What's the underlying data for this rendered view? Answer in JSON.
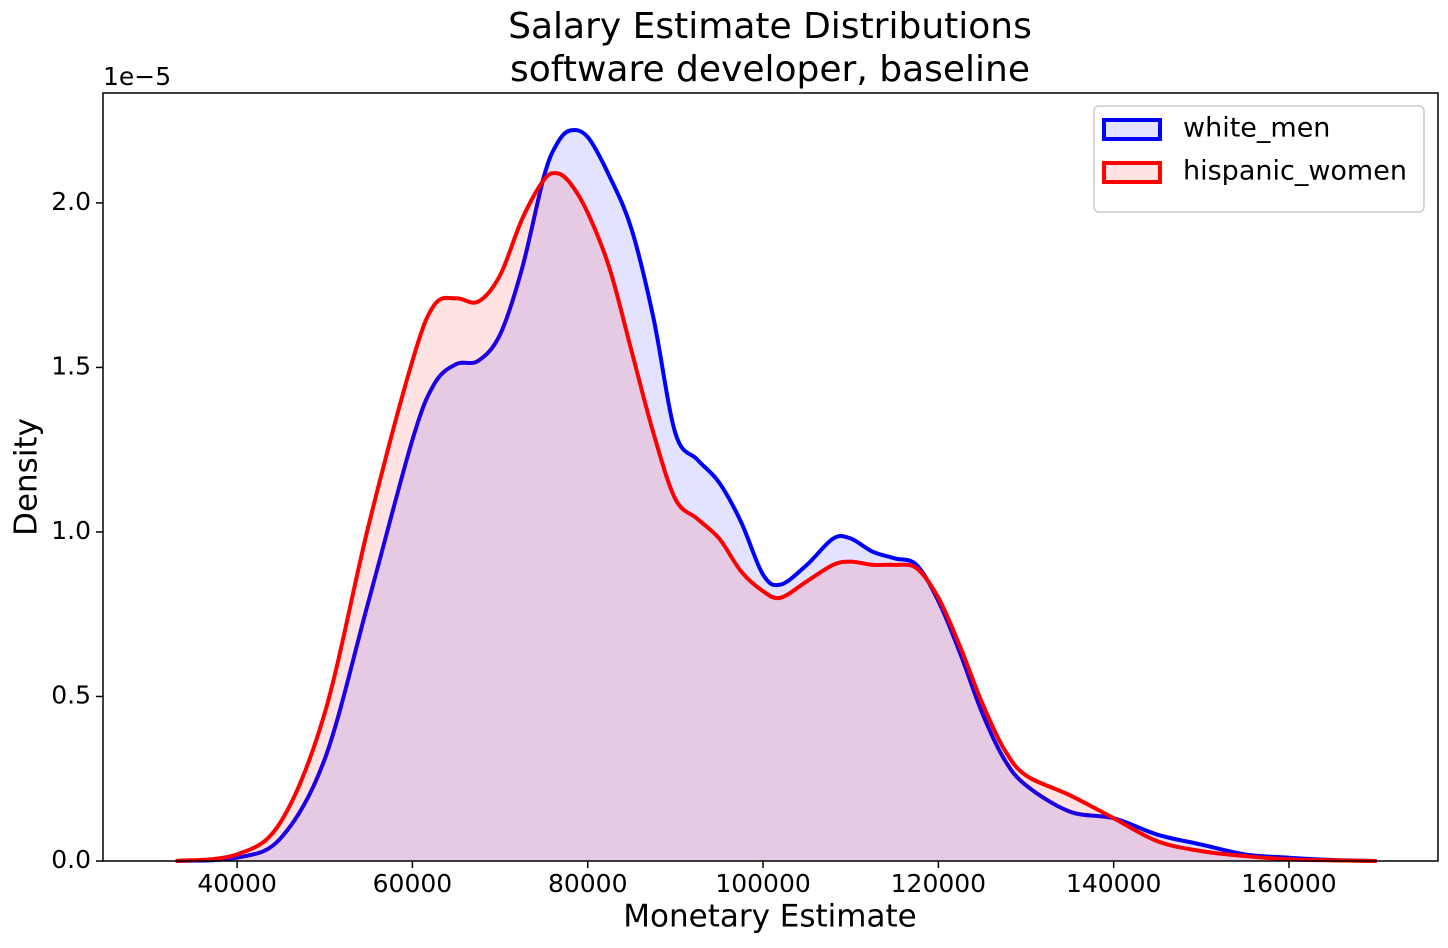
{
  "chart_data": {
    "type": "line",
    "title": "Salary Estimate Distributions",
    "subtitle": "software developer, baseline",
    "xlabel": "Monetary Estimate",
    "ylabel": "Density",
    "y_offset_label": "1e−5",
    "x": [
      33000,
      40000,
      45000,
      50000,
      55000,
      60000,
      62500,
      65000,
      67500,
      70000,
      72500,
      75000,
      76500,
      78000,
      80000,
      82500,
      85000,
      87500,
      90000,
      92500,
      95000,
      97500,
      100000,
      102000,
      105000,
      108000,
      110000,
      112500,
      115000,
      117500,
      120000,
      122500,
      125000,
      127500,
      130000,
      135000,
      140000,
      145000,
      150000,
      155000,
      160000,
      165000,
      170000
    ],
    "series": [
      {
        "name": "white_men",
        "color": "#0000ff",
        "values": [
          0,
          0.01,
          0.07,
          0.31,
          0.79,
          1.28,
          1.45,
          1.51,
          1.52,
          1.6,
          1.8,
          2.08,
          2.18,
          2.22,
          2.2,
          2.08,
          1.92,
          1.65,
          1.3,
          1.22,
          1.15,
          1.03,
          0.87,
          0.84,
          0.9,
          0.98,
          0.98,
          0.94,
          0.92,
          0.9,
          0.79,
          0.63,
          0.45,
          0.31,
          0.23,
          0.15,
          0.13,
          0.08,
          0.05,
          0.02,
          0.01,
          0.003,
          0
        ]
      },
      {
        "name": "hispanic_women",
        "color": "#ff0000",
        "values": [
          0,
          0.02,
          0.12,
          0.45,
          1.02,
          1.52,
          1.69,
          1.71,
          1.7,
          1.78,
          1.95,
          2.07,
          2.09,
          2.06,
          1.97,
          1.8,
          1.55,
          1.3,
          1.1,
          1.04,
          0.98,
          0.88,
          0.82,
          0.8,
          0.85,
          0.9,
          0.91,
          0.9,
          0.9,
          0.89,
          0.8,
          0.65,
          0.48,
          0.34,
          0.26,
          0.2,
          0.13,
          0.06,
          0.03,
          0.015,
          0.005,
          0.002,
          0
        ]
      }
    ],
    "xlim": [
      24700,
      177000
    ],
    "ylim": [
      0,
      2.334
    ],
    "xticks": [
      40000,
      60000,
      80000,
      100000,
      120000,
      140000,
      160000
    ],
    "yticks": [
      {
        "value": 0,
        "label": "0.0"
      },
      0.5,
      {
        "value": 1,
        "label": "1.0"
      },
      1.5,
      {
        "value": 2,
        "label": "2.0"
      }
    ],
    "fill_opacity": 0.11,
    "legend": "upper right"
  }
}
